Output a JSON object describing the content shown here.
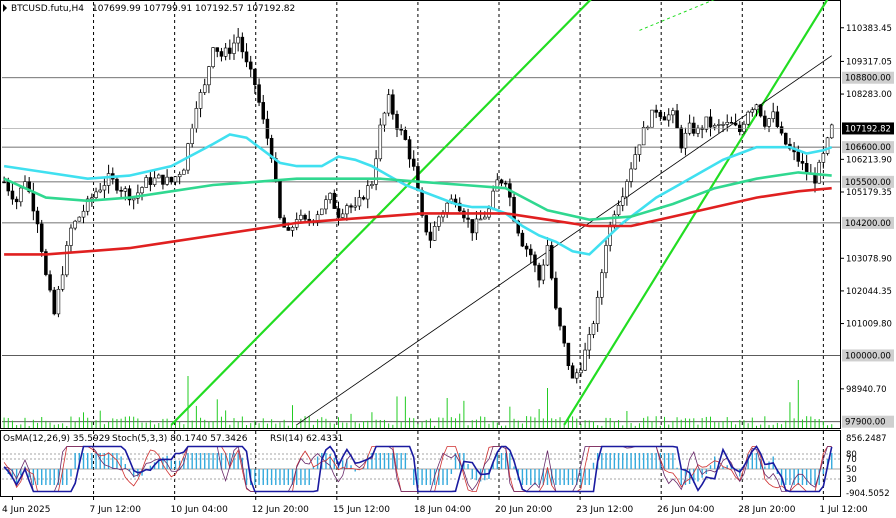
{
  "header": {
    "symbol": "BTCUSD.futu,H4",
    "ohlc": "107699.99 107799.91 107192.57 107192.82"
  },
  "indicator_header": {
    "osma": "OsMA(12,26,9) 35.5929",
    "stoch": "Stoch(5,3,3) 80.1740 57.3426",
    "rsi": "RSI(14) 62.4331"
  },
  "colors": {
    "candle": "#000000",
    "ma_fast": "#40e0f0",
    "ma_mid": "#30d890",
    "ma_slow": "#e02020",
    "channel": "#22dd22",
    "trendline": "#000000",
    "volume": "#22cc22",
    "osma_hist": "#33aadd",
    "stoch_main": "#1a1aa0",
    "stoch_signal": "#d03030",
    "rsi": "#6a2a6a",
    "price_tag_bg": "#000000",
    "price_tag_text": "#ffffff"
  },
  "chart_data": [
    {
      "type": "candlestick",
      "title": "BTCUSD.futu,H4",
      "price_axis_ticks": [
        110383.45,
        109317.05,
        108283.0,
        107248.0,
        106213.9,
        105179.35,
        104144.8,
        103078.9,
        102044.35,
        101009.8,
        99975.25,
        98940.7
      ],
      "price_axis_labels": [
        "110383.45",
        "109317.05",
        "108283.00",
        "106213.90",
        "105179.35",
        "103078.90",
        "102044.35",
        "101009.80",
        "98940.70"
      ],
      "horizontal_levels": [
        {
          "value": 108800.0,
          "label": "108800.00"
        },
        {
          "value": 106600.0,
          "label": "106600.00"
        },
        {
          "value": 105500.0,
          "label": "105500.00"
        },
        {
          "value": 104200.0,
          "label": "104200.00"
        },
        {
          "value": 100000.0,
          "label": "100000.00"
        },
        {
          "value": 97900.0,
          "label": "97900.00"
        }
      ],
      "current_price": {
        "value": 107192.82,
        "label": "107192.82"
      },
      "time_labels": [
        "4 Jun 2025",
        "7 Jun 12:00",
        "10 Jun 04:00",
        "12 Jun 20:00",
        "15 Jun 12:00",
        "18 Jun 04:00",
        "20 Jun 20:00",
        "23 Jun 12:00",
        "26 Jun 04:00",
        "28 Jun 20:00",
        "1 Jul 12:00"
      ],
      "ylim": [
        97700,
        111200
      ],
      "close_path": [
        [
          0,
          105500
        ],
        [
          3,
          104900
        ],
        [
          5,
          105600
        ],
        [
          8,
          104300
        ],
        [
          10,
          102500
        ],
        [
          12,
          101300
        ],
        [
          14,
          102700
        ],
        [
          16,
          104000
        ],
        [
          19,
          104600
        ],
        [
          22,
          105200
        ],
        [
          25,
          105600
        ],
        [
          28,
          105300
        ],
        [
          31,
          105000
        ],
        [
          34,
          105500
        ],
        [
          37,
          105600
        ],
        [
          40,
          105500
        ],
        [
          43,
          106000
        ],
        [
          46,
          108000
        ],
        [
          48,
          108500
        ],
        [
          50,
          109900
        ],
        [
          52,
          109500
        ],
        [
          54,
          109700
        ],
        [
          56,
          110100
        ],
        [
          58,
          109200
        ],
        [
          60,
          108600
        ],
        [
          62,
          107400
        ],
        [
          64,
          106400
        ],
        [
          66,
          104300
        ],
        [
          68,
          103800
        ],
        [
          70,
          104400
        ],
        [
          72,
          104200
        ],
        [
          74,
          104400
        ],
        [
          76,
          104700
        ],
        [
          78,
          105000
        ],
        [
          80,
          104500
        ],
        [
          82,
          104800
        ],
        [
          84,
          104600
        ],
        [
          86,
          105100
        ],
        [
          88,
          105500
        ],
        [
          90,
          107200
        ],
        [
          92,
          108100
        ],
        [
          94,
          107300
        ],
        [
          96,
          106800
        ],
        [
          98,
          105900
        ],
        [
          100,
          104300
        ],
        [
          102,
          103700
        ],
        [
          104,
          104400
        ],
        [
          106,
          104800
        ],
        [
          108,
          105000
        ],
        [
          110,
          104500
        ],
        [
          112,
          104000
        ],
        [
          114,
          104300
        ],
        [
          116,
          104600
        ],
        [
          118,
          105500
        ],
        [
          120,
          105600
        ],
        [
          122,
          104400
        ],
        [
          124,
          103600
        ],
        [
          126,
          103200
        ],
        [
          128,
          102400
        ],
        [
          130,
          103500
        ],
        [
          132,
          101400
        ],
        [
          134,
          100300
        ],
        [
          136,
          99200
        ],
        [
          138,
          99700
        ],
        [
          140,
          100500
        ],
        [
          142,
          101700
        ],
        [
          144,
          103600
        ],
        [
          146,
          104600
        ],
        [
          148,
          105200
        ],
        [
          150,
          106000
        ],
        [
          152,
          106800
        ],
        [
          154,
          107400
        ],
        [
          156,
          107800
        ],
        [
          158,
          107600
        ],
        [
          160,
          107600
        ],
        [
          162,
          106700
        ],
        [
          164,
          107200
        ],
        [
          166,
          107100
        ],
        [
          168,
          107400
        ],
        [
          170,
          107200
        ],
        [
          172,
          107300
        ],
        [
          174,
          107300
        ],
        [
          176,
          107100
        ],
        [
          178,
          107800
        ],
        [
          180,
          108000
        ],
        [
          182,
          107400
        ],
        [
          184,
          107600
        ],
        [
          186,
          106900
        ],
        [
          188,
          106500
        ],
        [
          190,
          106200
        ],
        [
          192,
          105800
        ],
        [
          194,
          105600
        ],
        [
          196,
          106300
        ],
        [
          198,
          107200
        ]
      ],
      "series": [
        {
          "name": "MA fast",
          "points": [
            [
              0,
              106000
            ],
            [
              10,
              105800
            ],
            [
              20,
              105600
            ],
            [
              30,
              105700
            ],
            [
              40,
              106000
            ],
            [
              50,
              106700
            ],
            [
              54,
              107000
            ],
            [
              58,
              106900
            ],
            [
              62,
              106500
            ],
            [
              66,
              106100
            ],
            [
              70,
              106000
            ],
            [
              76,
              106000
            ],
            [
              80,
              106300
            ],
            [
              84,
              106200
            ],
            [
              88,
              106000
            ],
            [
              92,
              105700
            ],
            [
              96,
              105400
            ],
            [
              100,
              105200
            ],
            [
              104,
              105000
            ],
            [
              108,
              104800
            ],
            [
              112,
              104700
            ],
            [
              116,
              104700
            ],
            [
              120,
              104500
            ],
            [
              124,
              104100
            ],
            [
              128,
              103800
            ],
            [
              132,
              103600
            ],
            [
              136,
              103300
            ],
            [
              140,
              103200
            ],
            [
              144,
              103700
            ],
            [
              148,
              104200
            ],
            [
              152,
              104600
            ],
            [
              156,
              105000
            ],
            [
              160,
              105300
            ],
            [
              164,
              105600
            ],
            [
              168,
              105900
            ],
            [
              172,
              106200
            ],
            [
              176,
              106400
            ],
            [
              180,
              106600
            ],
            [
              184,
              106600
            ],
            [
              188,
              106600
            ],
            [
              192,
              106400
            ],
            [
              196,
              106500
            ],
            [
              198,
              106600
            ]
          ]
        },
        {
          "name": "MA mid",
          "points": [
            [
              0,
              105600
            ],
            [
              10,
              105000
            ],
            [
              20,
              104900
            ],
            [
              30,
              105000
            ],
            [
              40,
              105200
            ],
            [
              50,
              105400
            ],
            [
              60,
              105500
            ],
            [
              70,
              105600
            ],
            [
              80,
              105600
            ],
            [
              90,
              105600
            ],
            [
              100,
              105500
            ],
            [
              110,
              105400
            ],
            [
              120,
              105300
            ],
            [
              130,
              104600
            ],
            [
              140,
              104300
            ],
            [
              150,
              104400
            ],
            [
              160,
              104800
            ],
            [
              170,
              105300
            ],
            [
              180,
              105600
            ],
            [
              190,
              105800
            ],
            [
              198,
              105700
            ]
          ]
        },
        {
          "name": "MA slow",
          "points": [
            [
              0,
              103200
            ],
            [
              10,
              103200
            ],
            [
              20,
              103300
            ],
            [
              30,
              103400
            ],
            [
              40,
              103600
            ],
            [
              50,
              103800
            ],
            [
              60,
              104000
            ],
            [
              70,
              104200
            ],
            [
              80,
              104300
            ],
            [
              90,
              104400
            ],
            [
              100,
              104500
            ],
            [
              110,
              104500
            ],
            [
              120,
              104500
            ],
            [
              130,
              104300
            ],
            [
              140,
              104100
            ],
            [
              150,
              104100
            ],
            [
              160,
              104400
            ],
            [
              170,
              104700
            ],
            [
              180,
              105000
            ],
            [
              190,
              105200
            ],
            [
              198,
              105300
            ]
          ]
        }
      ],
      "channel_lines": [
        {
          "name": "channel upper",
          "from": [
            40,
            97800
          ],
          "to": [
            142,
            111500
          ]
        },
        {
          "name": "channel lower",
          "from": [
            134,
            97800
          ],
          "to": [
            198,
            111500
          ]
        },
        {
          "name": "trendline",
          "from": [
            70,
            97800
          ],
          "to": [
            198,
            109500
          ]
        }
      ]
    },
    {
      "type": "indicator_panel",
      "osma": 35.5929,
      "stoch_main": 80.174,
      "stoch_signal": 57.3426,
      "rsi": 62.4331,
      "right_axis_labels": [
        "856.2487",
        "80",
        "70",
        "50",
        "30",
        "-904.5052"
      ],
      "levels": [
        80,
        70,
        50,
        30
      ]
    }
  ]
}
